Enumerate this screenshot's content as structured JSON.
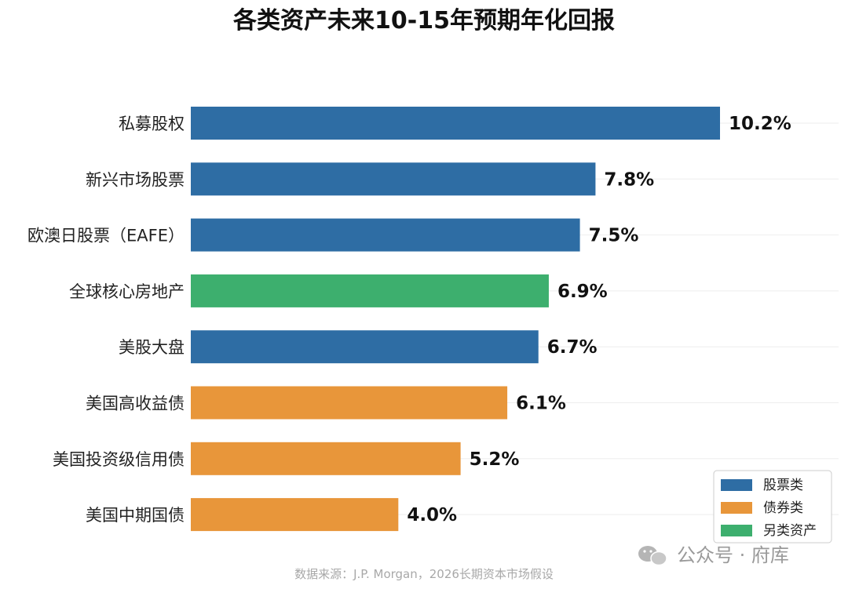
{
  "chart_data": {
    "type": "bar",
    "orientation": "horizontal",
    "title": "各类资产未来10-15年预期年化回报",
    "categories": [
      "私募股权",
      "新兴市场股票",
      "欧澳日股票（EAFE）",
      "全球核心房地产",
      "美股大盘",
      "美国高收益债",
      "美国投资级信用债",
      "美国中期国债"
    ],
    "values": [
      10.2,
      7.8,
      7.5,
      6.9,
      6.7,
      6.1,
      5.2,
      4.0
    ],
    "value_labels": [
      "10.2%",
      "7.8%",
      "7.5%",
      "6.9%",
      "6.7%",
      "6.1%",
      "5.2%",
      "4.0%"
    ],
    "groups": [
      "股票类",
      "股票类",
      "股票类",
      "另类资产",
      "股票类",
      "债券类",
      "债券类",
      "债券类"
    ],
    "legend": [
      {
        "name": "股票类",
        "color": "#2e6da4"
      },
      {
        "name": "债券类",
        "color": "#e8963a"
      },
      {
        "name": "另类资产",
        "color": "#3daf6e"
      }
    ],
    "legend_position": "bottom-right",
    "xlim": [
      0,
      10.2
    ],
    "grid": true
  },
  "source_text": "数据来源：J.P. Morgan，2026长期资本市场假设",
  "watermark_text": "公众号 · 府库"
}
